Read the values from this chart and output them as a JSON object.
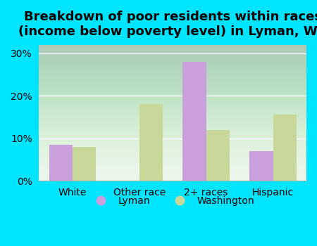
{
  "title": "Breakdown of poor residents within races\n(income below poverty level) in Lyman, WA",
  "categories": [
    "White",
    "Other race",
    "2+ races",
    "Hispanic"
  ],
  "lyman_values": [
    8.5,
    0,
    28.0,
    7.0
  ],
  "washington_values": [
    8.0,
    18.0,
    12.0,
    15.5
  ],
  "lyman_color": "#c9a0dc",
  "washington_color": "#c8d89a",
  "background_outer": "#00e5ff",
  "background_inner": "#e8f5e8",
  "ylim": [
    0,
    32
  ],
  "yticks": [
    0,
    10,
    20,
    30
  ],
  "legend_lyman": "Lyman",
  "legend_washington": "Washington",
  "title_fontsize": 13,
  "tick_fontsize": 10,
  "legend_fontsize": 10
}
